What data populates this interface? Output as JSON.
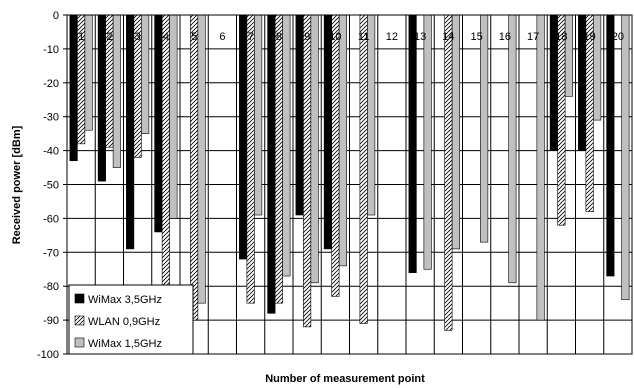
{
  "chart_data": {
    "type": "bar",
    "title": "",
    "xlabel": "Number of measurement point",
    "ylabel": "Received power [dBm]",
    "ylim": [
      -100,
      0
    ],
    "yticks": [
      0,
      -10,
      -20,
      -30,
      -40,
      -50,
      -60,
      -70,
      -80,
      -90,
      -100
    ],
    "grid": true,
    "legend_position": "bottom-left",
    "categories": [
      "1",
      "2",
      "3",
      "4",
      "5",
      "6",
      "7",
      "8",
      "9",
      "10",
      "11",
      "12",
      "13",
      "14",
      "15",
      "16",
      "17",
      "18",
      "19",
      "20"
    ],
    "series": [
      {
        "name": "WiMax 3,5GHz",
        "color": "#000000",
        "pattern": "solid",
        "values": [
          -43,
          -49,
          -69,
          -64,
          null,
          null,
          -72,
          -88,
          -59,
          -69,
          null,
          null,
          -76,
          null,
          null,
          null,
          null,
          -40,
          -40,
          -77
        ]
      },
      {
        "name": "WLAN 0,9GHz",
        "color": "#ffffff",
        "pattern": "hatch",
        "values": [
          -38,
          -39,
          -42,
          -80,
          -90,
          null,
          -85,
          -85,
          -92,
          -83,
          -91,
          null,
          null,
          -93,
          null,
          null,
          null,
          -62,
          -58,
          null
        ]
      },
      {
        "name": "WiMax 1,5GHz",
        "color": "#c0c0c0",
        "pattern": "solid",
        "values": [
          -34,
          -45,
          -35,
          -60,
          -85,
          null,
          -59,
          -77,
          -79,
          -74,
          -59,
          null,
          -75,
          -69,
          -67,
          -79,
          -90,
          -24,
          -31,
          -84
        ]
      }
    ]
  }
}
